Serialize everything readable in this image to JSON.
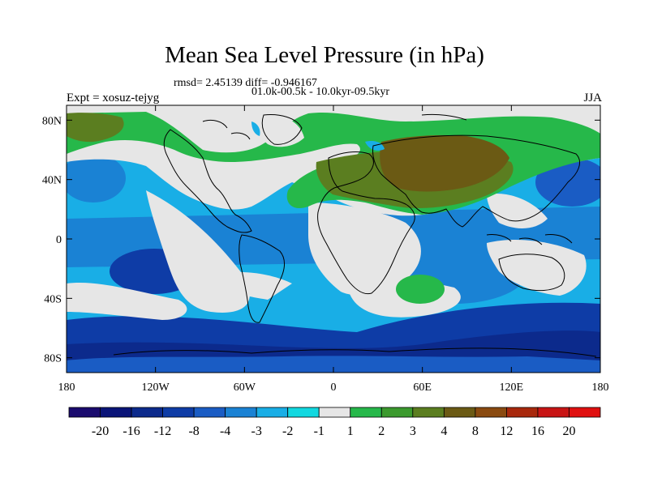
{
  "chart_data": {
    "type": "contour-map",
    "title": "Mean Sea Level Pressure (in hPa)",
    "stats_text": "rmsd= 2.45139 diff= -0.946167",
    "period_text": "01.0k-00.5k - 10.0kyr-09.5kyr",
    "experiment_label": "Expt = xosuz-tejyg",
    "season_label": "JJA",
    "x_ticks": [
      "180",
      "120W",
      "60W",
      "0",
      "60E",
      "120E",
      "180"
    ],
    "y_ticks": [
      "80N",
      "40N",
      "0",
      "40S",
      "80S"
    ],
    "xlim": [
      -180,
      180
    ],
    "ylim": [
      -90,
      90
    ],
    "colorbar": {
      "labels": [
        "-20",
        "-16",
        "-12",
        "-8",
        "-4",
        "-3",
        "-2",
        "-1",
        "1",
        "2",
        "3",
        "4",
        "8",
        "12",
        "16",
        "20"
      ],
      "colors": [
        "#1a0b6e",
        "#0a1478",
        "#0c2a8c",
        "#0e3ca6",
        "#1a5cc4",
        "#1a82d4",
        "#19aee6",
        "#12d8e0",
        "#e6e6e6",
        "#26b84a",
        "#3b9a2e",
        "#5b7e20",
        "#6b5a14",
        "#8a4a10",
        "#a8280c",
        "#c81414",
        "#e01010"
      ]
    }
  }
}
